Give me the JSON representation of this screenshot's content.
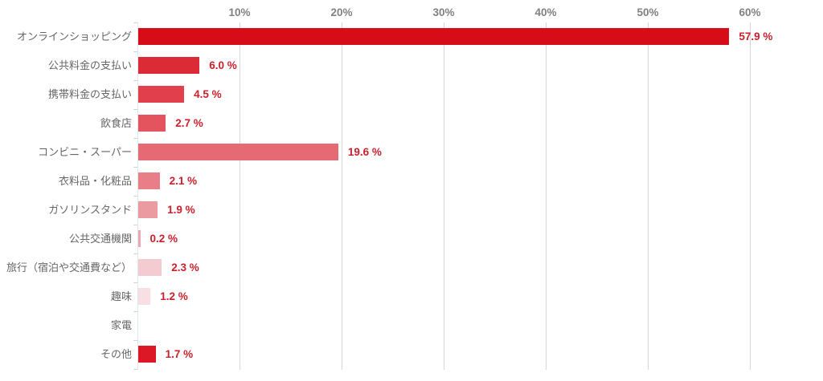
{
  "chart_data": {
    "type": "bar",
    "orientation": "horizontal",
    "title": "",
    "xlabel": "",
    "ylabel": "",
    "unit": "%",
    "xlim": [
      0,
      60
    ],
    "grid": true,
    "tick_position": "top",
    "x_ticks": [
      {
        "value": 10,
        "label": "10%"
      },
      {
        "value": 20,
        "label": "20%"
      },
      {
        "value": 30,
        "label": "30%"
      },
      {
        "value": 40,
        "label": "40%"
      },
      {
        "value": 50,
        "label": "50%"
      },
      {
        "value": 60,
        "label": "60%"
      }
    ],
    "categories": [
      "オンラインショッピング",
      "公共料金の支払い",
      "携帯料金の支払い",
      "飲食店",
      "コンビニ・スーパー",
      "衣料品・化粧品",
      "ガソリンスタンド",
      "公共交通機関",
      "旅行（宿泊や交通費など）",
      "趣味",
      "家電",
      "その他"
    ],
    "values": [
      57.9,
      6.0,
      4.5,
      2.7,
      19.6,
      2.1,
      1.9,
      0.2,
      2.3,
      1.2,
      0,
      1.7
    ],
    "value_labels": [
      "57.9 %",
      "6.0 %",
      "4.5 %",
      "2.7 %",
      "19.6 %",
      "2.1 %",
      "1.9 %",
      "0.2 %",
      "2.3 %",
      "1.2 %",
      "",
      "1.7 %"
    ],
    "bar_colors": [
      "#d60d18",
      "#dc2a36",
      "#e03f4b",
      "#e4545f",
      "#e66a73",
      "#e87f88",
      "#eb9aa1",
      "#eda7ae",
      "#f3cbd1",
      "#f7dfe3",
      null,
      "#dd1826"
    ],
    "colors": {
      "gridline": "#d6d6d6",
      "axis_line": "#dfe8ee",
      "tick_label": "#808080",
      "category_label": "#666666",
      "value_label": "#c9202c"
    }
  }
}
